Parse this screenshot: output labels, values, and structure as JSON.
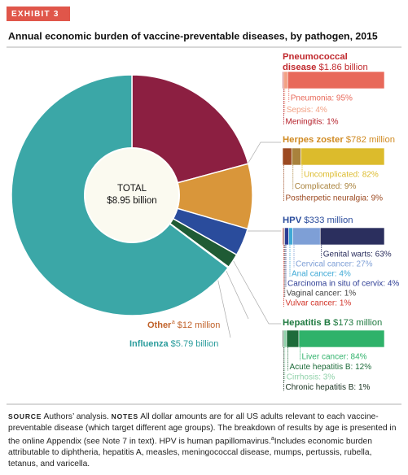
{
  "exhibit": "EXHIBIT 3",
  "chart_data": {
    "type": "donut",
    "title": "Annual economic burden of vaccine-preventable diseases, by pathogen, 2015",
    "total_title": "TOTAL",
    "total": 8.95,
    "total_label": "$8.95 billion",
    "slices": [
      {
        "name": "Pneumococcal disease",
        "value": 1.86,
        "value_label": "$1.86 billion",
        "color": "#8c1f41",
        "text_color": "#c0282d",
        "breakdown": [
          {
            "label": "Pneumonia: 95%",
            "value": 95,
            "color": "#e8695a"
          },
          {
            "label": "Sepsis: 4%",
            "value": 4,
            "color": "#f2a184"
          },
          {
            "label": "Meningitis: 1%",
            "value": 1,
            "color": "#b5202a"
          }
        ]
      },
      {
        "name": "Herpes zoster",
        "value": 0.782,
        "value_label": "$782 million",
        "color": "#d9963a",
        "text_color": "#d08a22",
        "breakdown": [
          {
            "label": "Uncomplicated: 82%",
            "value": 82,
            "color": "#dcbb2c"
          },
          {
            "label": "Complicated: 9%",
            "value": 9,
            "color": "#a9823c"
          },
          {
            "label": "Postherpetic neuralgia: 9%",
            "value": 9,
            "color": "#9c4a22"
          }
        ]
      },
      {
        "name": "HPV",
        "value": 0.333,
        "value_label": "$333 million",
        "color": "#2a4c9c",
        "text_color": "#2a4c9c",
        "breakdown": [
          {
            "label": "Genital warts: 63%",
            "value": 63,
            "color": "#2b2f5e"
          },
          {
            "label": "Cervical cancer: 27%",
            "value": 27,
            "color": "#7e9fd6"
          },
          {
            "label": "Anal cancer: 4%",
            "value": 4,
            "color": "#3ea9d6"
          },
          {
            "label": "Carcinoma in situ of cervix: 4%",
            "value": 4,
            "color": "#2c3c94"
          },
          {
            "label": "Vaginal cancer: 1%",
            "value": 1,
            "color": "#444444"
          },
          {
            "label": "Vulvar cancer: 1%",
            "value": 1,
            "color": "#d2352a"
          }
        ]
      },
      {
        "name": "Hepatitis B",
        "value": 0.173,
        "value_label": "$173 million",
        "color": "#1f5b35",
        "text_color": "#1f7a40",
        "breakdown": [
          {
            "label": "Liver cancer: 84%",
            "value": 84,
            "color": "#2fb26a"
          },
          {
            "label": "Acute hepatitis B: 12%",
            "value": 12,
            "color": "#1e6b3a"
          },
          {
            "label": "Cirrhosis: 3%",
            "value": 3,
            "color": "#8fd1a9"
          },
          {
            "label": "Chronic hepatitis B: 1%",
            "value": 1,
            "color": "#17301f"
          }
        ]
      },
      {
        "name": "Other",
        "note_marker": "a",
        "value": 0.012,
        "value_label": "$12 million",
        "color": "#8a4a22",
        "text_color": "#c0622a"
      },
      {
        "name": "Influenza",
        "value": 5.79,
        "value_label": "$5.79 billion",
        "color": "#3ba7a7",
        "text_color": "#2a9c9c"
      }
    ]
  },
  "footer": {
    "source_label": "SOURCE",
    "source_text": "Authors’ analysis.",
    "notes_label": "NOTES",
    "notes_text": "All dollar amounts are for all US adults relevant to each vaccine-preventable disease (which target different age groups). The breakdown of results by age is presented in the online Appendix (see Note 7 in text). HPV is human papillomavirus.",
    "notes_marker": "a",
    "notes_text_2": "Includes economic burden attributable to diphtheria, hepatitis A, measles, meningococcal disease, mumps, pertussis, rubella, tetanus, and varicella."
  }
}
